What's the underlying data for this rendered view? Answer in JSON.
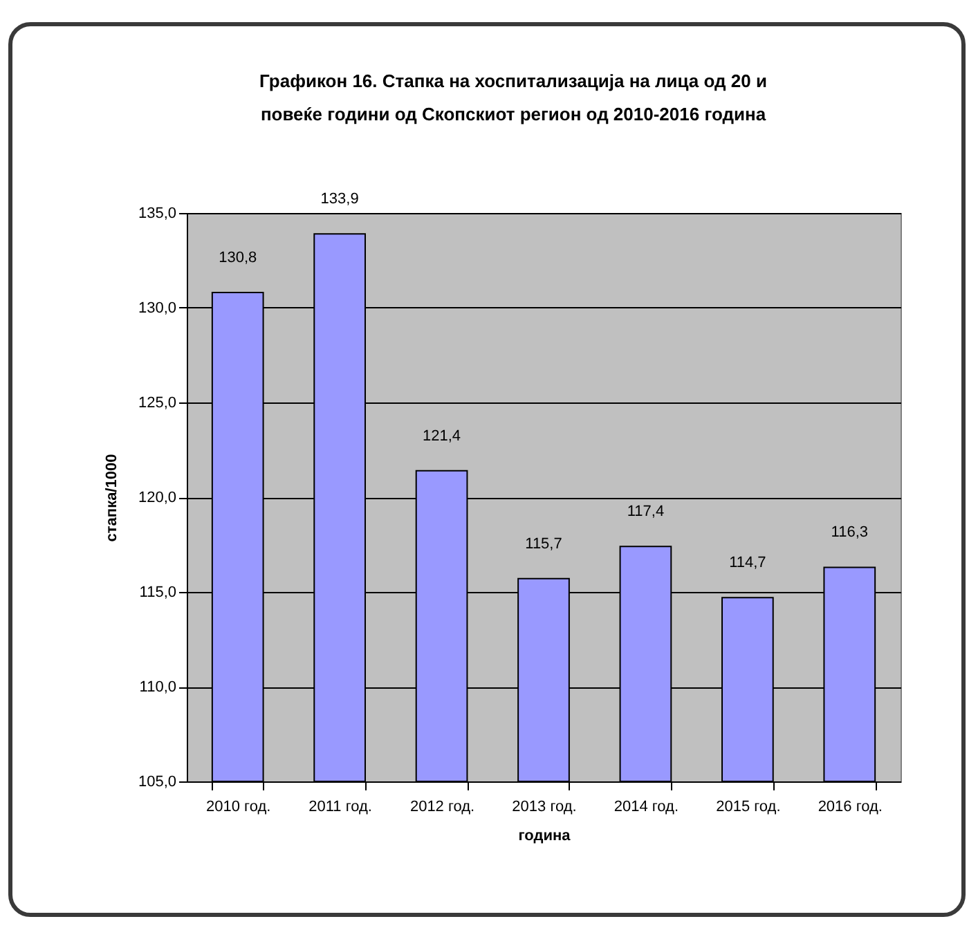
{
  "chart_data": {
    "type": "bar",
    "title": [
      "Графикон 16. Стапка на хоспитализација на лица од 20 и",
      "повеќе години од Скопскиот регион од 2010-2016 година"
    ],
    "xlabel": "година",
    "ylabel": "стапка/1000",
    "categories": [
      "2010 год.",
      "2011 год.",
      "2012 год.",
      "2013 год.",
      "2014 год.",
      "2015 год.",
      "2016 год."
    ],
    "values": [
      130.8,
      133.9,
      121.4,
      115.7,
      117.4,
      114.7,
      116.3
    ],
    "value_labels": [
      "130,8",
      "133,9",
      "121,4",
      "115,7",
      "117,4",
      "114,7",
      "116,3"
    ],
    "color": "#9999ff",
    "ylim": [
      105,
      135
    ],
    "yticks": [
      {
        "value": 105,
        "label": "105,0"
      },
      {
        "value": 110,
        "label": "110,0"
      },
      {
        "value": 115,
        "label": "115,0"
      },
      {
        "value": 120,
        "label": "120,0"
      },
      {
        "value": 125,
        "label": "125,0"
      },
      {
        "value": 130,
        "label": "130,0"
      },
      {
        "value": 135,
        "label": "135,0"
      }
    ],
    "grid": "y"
  }
}
